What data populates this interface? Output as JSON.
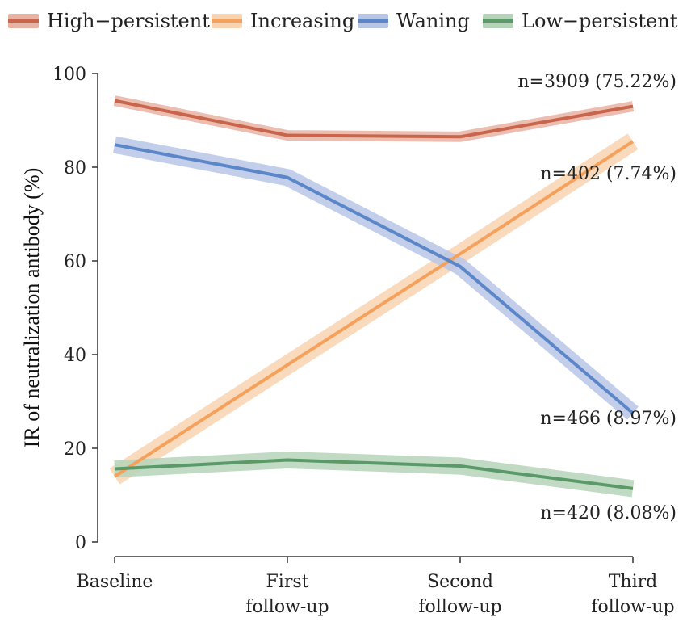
{
  "chart_data": {
    "type": "line",
    "title": "",
    "xlabel": "",
    "ylabel": "IR of neutralization antibody (%)",
    "ylim": [
      0,
      100
    ],
    "yticks": [
      0,
      20,
      40,
      60,
      80,
      100
    ],
    "grid": false,
    "legend_position": "top",
    "categories": [
      {
        "line1": "Baseline",
        "line2": ""
      },
      {
        "line1": "First",
        "line2": "follow-up"
      },
      {
        "line1": "Second",
        "line2": "follow-up"
      },
      {
        "line1": "Third",
        "line2": "follow-up"
      }
    ],
    "series": [
      {
        "key": "high",
        "name": "High−persistent",
        "color": "#c8654a",
        "band_color": "#e8b3a3",
        "values": [
          94.2,
          86.8,
          86.5,
          93.0
        ],
        "band": 0.6,
        "annotation": "n=3909 (75.22%)"
      },
      {
        "key": "increasing",
        "name": "Increasing",
        "color": "#f5a15c",
        "band_color": "#f9d3b0",
        "values": [
          14.0,
          37.8,
          61.5,
          85.5
        ],
        "band": 1.5,
        "annotation": "n=402 (7.74%)"
      },
      {
        "key": "waning",
        "name": "Waning",
        "color": "#5b86c8",
        "band_color": "#b7c5e6",
        "values": [
          84.8,
          77.8,
          58.8,
          27.5
        ],
        "band": 1.3,
        "annotation": "n=466 (8.97%)"
      },
      {
        "key": "low",
        "name": "Low−persistent",
        "color": "#5a9a68",
        "band_color": "#b5d3b8",
        "values": [
          15.6,
          17.5,
          16.2,
          11.4
        ],
        "band": 1.3,
        "annotation": "n=420 (8.08%)"
      }
    ]
  }
}
